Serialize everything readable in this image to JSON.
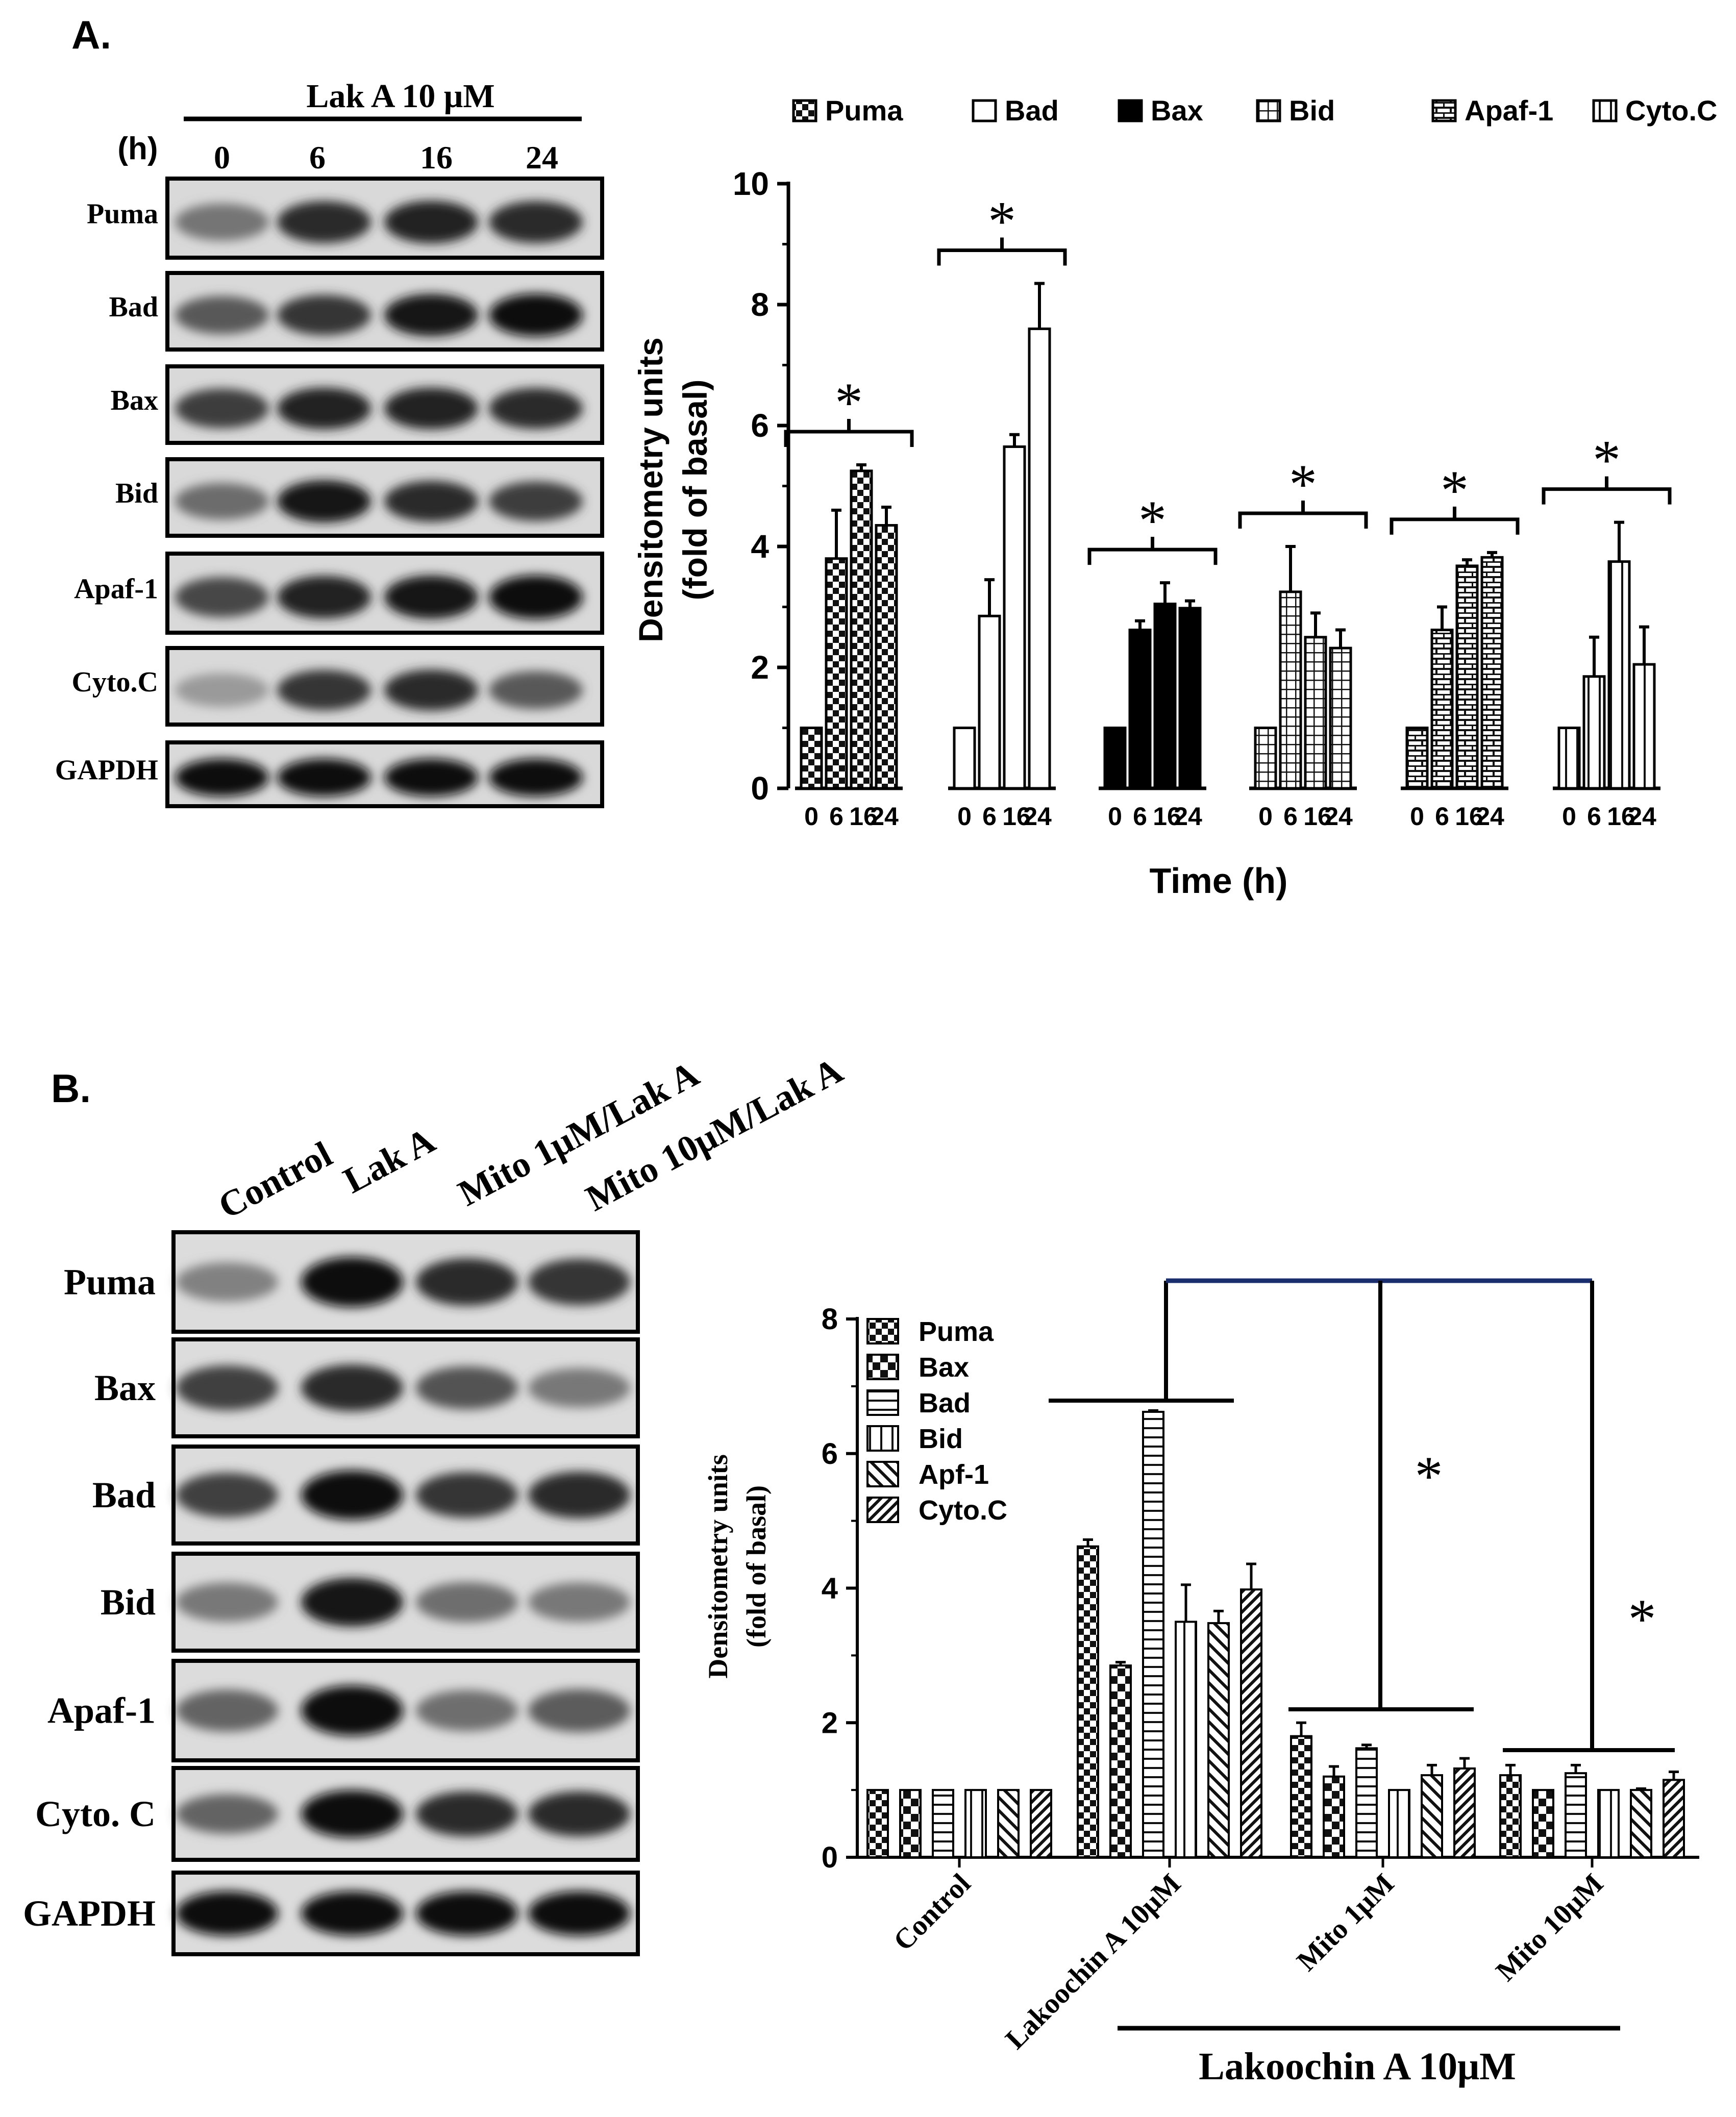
{
  "panel_a": {
    "label": "A.",
    "blot": {
      "treatment": "Lak A 10 μM",
      "time_axis_label": "(h)",
      "times": [
        "0",
        "6",
        "16",
        "24"
      ],
      "rows": [
        "Puma",
        "Bad",
        "Bax",
        "Bid",
        "Apaf-1",
        "Cyto.C",
        "GAPDH"
      ]
    }
  },
  "panel_b": {
    "label": "B.",
    "blot": {
      "lanes": [
        "Control",
        "Lak A",
        "Mito 1μM/Lak A",
        "Mito 10μM/Lak A"
      ],
      "rows": [
        "Puma",
        "Bax",
        "Bad",
        "Bid",
        "Apaf-1",
        "Cyto. C",
        "GAPDH"
      ]
    }
  },
  "chart_data": [
    {
      "type": "bar",
      "panel": "A",
      "xlabel": "Time (h)",
      "ylabel": "Densitometry units",
      "ylabel2": "(fold of basal)",
      "ylim": [
        0,
        10
      ],
      "yticks": [
        "0",
        "2",
        "4",
        "6",
        "8",
        "10"
      ],
      "x_tick_labels": [
        "0",
        "6",
        "16",
        "24"
      ],
      "legend_position": "top",
      "series": [
        {
          "name": "Puma",
          "pattern": "checker",
          "values": [
            1.0,
            3.8,
            5.25,
            4.35
          ],
          "errors": [
            0,
            0.8,
            0.1,
            0.3
          ],
          "significance": "*"
        },
        {
          "name": "Bad",
          "pattern": "white",
          "values": [
            1.0,
            2.85,
            5.65,
            7.6
          ],
          "errors": [
            0,
            0.6,
            0.2,
            0.75
          ],
          "significance": "*"
        },
        {
          "name": "Bax",
          "pattern": "black",
          "values": [
            1.0,
            2.62,
            3.05,
            2.98
          ],
          "errors": [
            0,
            0.15,
            0.35,
            0.12
          ],
          "significance": "*"
        },
        {
          "name": "Bid",
          "pattern": "grid",
          "values": [
            1.0,
            3.25,
            2.5,
            2.32
          ],
          "errors": [
            0,
            0.75,
            0.4,
            0.3
          ],
          "significance": "*"
        },
        {
          "name": "Apaf-1",
          "pattern": "brick",
          "values": [
            1.0,
            2.62,
            3.68,
            3.82
          ],
          "errors": [
            0,
            0.38,
            0.1,
            0.08
          ],
          "significance": "*"
        },
        {
          "name": "Cyto.C",
          "pattern": "vstripes",
          "values": [
            1.0,
            1.85,
            3.75,
            2.05
          ],
          "errors": [
            0,
            0.65,
            0.65,
            0.62
          ],
          "significance": "*"
        }
      ]
    },
    {
      "type": "bar",
      "panel": "B",
      "ylabel": "Densitometry units",
      "ylabel2": "(fold of basal)",
      "ylim": [
        0,
        8
      ],
      "yticks": [
        "0",
        "2",
        "4",
        "6",
        "8"
      ],
      "categories": [
        "Control",
        "Lakoochin A 10μM",
        "Mito 1μM",
        "Mito 10μM"
      ],
      "group_label": "Lakoochin A  10μM",
      "legend_position": "top-left",
      "significance": [
        "*",
        "*"
      ],
      "series": [
        {
          "name": "Puma",
          "pattern": "checker",
          "values": [
            1.0,
            4.62,
            1.8,
            1.22
          ],
          "errors": [
            0,
            0.1,
            0.2,
            0.15
          ]
        },
        {
          "name": "Bax",
          "pattern": "checker-coarse",
          "values": [
            1.0,
            2.85,
            1.2,
            1.0
          ],
          "errors": [
            0,
            0.05,
            0.15,
            0
          ]
        },
        {
          "name": "Bad",
          "pattern": "hstripes",
          "values": [
            1.0,
            6.62,
            1.62,
            1.25
          ],
          "errors": [
            0,
            0.02,
            0.05,
            0.12
          ]
        },
        {
          "name": "Bid",
          "pattern": "vstripes",
          "values": [
            1.0,
            3.5,
            1.0,
            1.0
          ],
          "errors": [
            0,
            0.55,
            0,
            0
          ]
        },
        {
          "name": "Apf-1",
          "pattern": "diag",
          "values": [
            1.0,
            3.48,
            1.22,
            1.0
          ],
          "errors": [
            0,
            0.18,
            0.15,
            0.02
          ]
        },
        {
          "name": "Cyto.C",
          "pattern": "diag-dense",
          "values": [
            1.0,
            3.98,
            1.32,
            1.15
          ],
          "errors": [
            0,
            0.38,
            0.15,
            0.12
          ]
        }
      ]
    }
  ]
}
